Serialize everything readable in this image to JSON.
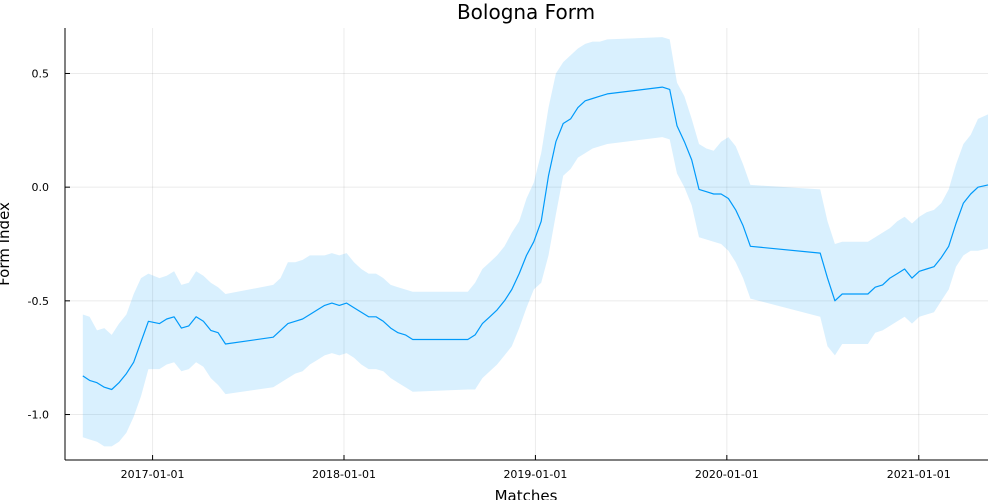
{
  "chart_data": {
    "type": "line",
    "title": "Bologna Form",
    "xlabel": "Matches",
    "ylabel": "Form Index",
    "xlim": [
      "2016-07-18",
      "2021-05-13"
    ],
    "ylim": [
      -1.2,
      0.7
    ],
    "grid": true,
    "legend": "none",
    "x_ticks": [
      "2017-01-01",
      "2018-01-01",
      "2019-01-01",
      "2020-01-01",
      "2021-01-01"
    ],
    "y_ticks": [
      0.5,
      0.0,
      -0.5,
      -1.0
    ],
    "y_tick_labels": [
      "0.5",
      "0.0",
      "-0.5",
      "-1.0"
    ],
    "colors": {
      "line": "#009AFA",
      "band": "#009AFA"
    },
    "series": [
      {
        "x": [
          "2016-08-21",
          "2016-09-03",
          "2016-09-17",
          "2016-10-01",
          "2016-10-15",
          "2016-10-29",
          "2016-11-12",
          "2016-11-26",
          "2016-12-10",
          "2016-12-24",
          "2017-01-14",
          "2017-01-28",
          "2017-02-11",
          "2017-02-25",
          "2017-03-11",
          "2017-03-25",
          "2017-04-08",
          "2017-04-22",
          "2017-05-06",
          "2017-05-20",
          "2017-08-19",
          "2017-09-02",
          "2017-09-16",
          "2017-09-30",
          "2017-10-14",
          "2017-10-28",
          "2017-11-11",
          "2017-11-25",
          "2017-12-09",
          "2017-12-23",
          "2018-01-06",
          "2018-01-20",
          "2018-02-03",
          "2018-02-17",
          "2018-03-03",
          "2018-03-17",
          "2018-03-31",
          "2018-04-14",
          "2018-04-28",
          "2018-05-12",
          "2018-08-25",
          "2018-09-08",
          "2018-09-22",
          "2018-10-06",
          "2018-10-20",
          "2018-11-03",
          "2018-11-17",
          "2018-12-01",
          "2018-12-15",
          "2018-12-29",
          "2019-01-12",
          "2019-01-26",
          "2019-02-09",
          "2019-02-23",
          "2019-03-09",
          "2019-03-23",
          "2019-04-06",
          "2019-04-20",
          "2019-05-04",
          "2019-05-18",
          "2019-08-31",
          "2019-09-14",
          "2019-09-28",
          "2019-10-12",
          "2019-10-26",
          "2019-11-09",
          "2019-11-23",
          "2019-12-07",
          "2019-12-21",
          "2020-01-04",
          "2020-01-18",
          "2020-02-01",
          "2020-02-15",
          "2020-06-27",
          "2020-07-11",
          "2020-07-25",
          "2020-08-08",
          "2020-09-26",
          "2020-10-10",
          "2020-10-24",
          "2020-11-07",
          "2020-11-21",
          "2020-12-05",
          "2020-12-19",
          "2021-01-02",
          "2021-01-16",
          "2021-01-30",
          "2021-02-13",
          "2021-02-27",
          "2021-03-13",
          "2021-03-27",
          "2021-04-10",
          "2021-04-24",
          "2021-05-13"
        ],
        "values": [
          -0.83,
          -0.85,
          -0.86,
          -0.88,
          -0.89,
          -0.86,
          -0.82,
          -0.77,
          -0.68,
          -0.59,
          -0.6,
          -0.58,
          -0.57,
          -0.62,
          -0.61,
          -0.57,
          -0.59,
          -0.63,
          -0.64,
          -0.69,
          -0.66,
          -0.63,
          -0.6,
          -0.59,
          -0.58,
          -0.56,
          -0.54,
          -0.52,
          -0.51,
          -0.52,
          -0.51,
          -0.53,
          -0.55,
          -0.57,
          -0.57,
          -0.59,
          -0.62,
          -0.64,
          -0.65,
          -0.67,
          -0.67,
          -0.65,
          -0.6,
          -0.57,
          -0.54,
          -0.5,
          -0.45,
          -0.38,
          -0.3,
          -0.24,
          -0.15,
          0.05,
          0.2,
          0.28,
          0.3,
          0.35,
          0.38,
          0.39,
          0.4,
          0.41,
          0.44,
          0.43,
          0.27,
          0.2,
          0.12,
          -0.01,
          -0.02,
          -0.03,
          -0.03,
          -0.05,
          -0.1,
          -0.17,
          -0.26,
          -0.29,
          -0.4,
          -0.5,
          -0.47,
          -0.47,
          -0.44,
          -0.43,
          -0.4,
          -0.38,
          -0.36,
          -0.4,
          -0.37,
          -0.36,
          -0.35,
          -0.31,
          -0.26,
          -0.16,
          -0.07,
          -0.03,
          0.0,
          0.01
        ],
        "band_upper": [
          -0.56,
          -0.57,
          -0.63,
          -0.62,
          -0.65,
          -0.6,
          -0.56,
          -0.47,
          -0.4,
          -0.38,
          -0.4,
          -0.39,
          -0.37,
          -0.43,
          -0.42,
          -0.37,
          -0.39,
          -0.42,
          -0.44,
          -0.47,
          -0.43,
          -0.4,
          -0.33,
          -0.33,
          -0.32,
          -0.3,
          -0.3,
          -0.3,
          -0.29,
          -0.3,
          -0.29,
          -0.33,
          -0.36,
          -0.38,
          -0.38,
          -0.4,
          -0.43,
          -0.44,
          -0.45,
          -0.46,
          -0.46,
          -0.42,
          -0.36,
          -0.33,
          -0.3,
          -0.26,
          -0.2,
          -0.15,
          -0.05,
          0.02,
          0.15,
          0.35,
          0.5,
          0.55,
          0.58,
          0.61,
          0.63,
          0.64,
          0.64,
          0.65,
          0.66,
          0.65,
          0.46,
          0.4,
          0.3,
          0.19,
          0.17,
          0.16,
          0.2,
          0.22,
          0.18,
          0.1,
          0.01,
          -0.01,
          -0.15,
          -0.25,
          -0.24,
          -0.24,
          -0.22,
          -0.2,
          -0.18,
          -0.15,
          -0.13,
          -0.16,
          -0.13,
          -0.11,
          -0.1,
          -0.07,
          -0.01,
          0.1,
          0.19,
          0.23,
          0.3,
          0.32
        ],
        "band_lower": [
          -1.1,
          -1.11,
          -1.12,
          -1.14,
          -1.14,
          -1.12,
          -1.08,
          -1.01,
          -0.92,
          -0.8,
          -0.8,
          -0.78,
          -0.77,
          -0.81,
          -0.8,
          -0.77,
          -0.79,
          -0.84,
          -0.87,
          -0.91,
          -0.88,
          -0.86,
          -0.84,
          -0.82,
          -0.81,
          -0.78,
          -0.76,
          -0.74,
          -0.73,
          -0.74,
          -0.73,
          -0.75,
          -0.78,
          -0.8,
          -0.8,
          -0.81,
          -0.84,
          -0.86,
          -0.88,
          -0.9,
          -0.89,
          -0.89,
          -0.84,
          -0.81,
          -0.78,
          -0.74,
          -0.7,
          -0.62,
          -0.53,
          -0.45,
          -0.42,
          -0.3,
          -0.12,
          0.05,
          0.08,
          0.13,
          0.15,
          0.17,
          0.18,
          0.19,
          0.22,
          0.21,
          0.06,
          0.0,
          -0.08,
          -0.22,
          -0.23,
          -0.24,
          -0.25,
          -0.28,
          -0.33,
          -0.4,
          -0.49,
          -0.57,
          -0.7,
          -0.74,
          -0.69,
          -0.69,
          -0.64,
          -0.63,
          -0.61,
          -0.59,
          -0.57,
          -0.6,
          -0.57,
          -0.56,
          -0.55,
          -0.5,
          -0.45,
          -0.35,
          -0.3,
          -0.28,
          -0.28,
          -0.27
        ]
      }
    ]
  }
}
